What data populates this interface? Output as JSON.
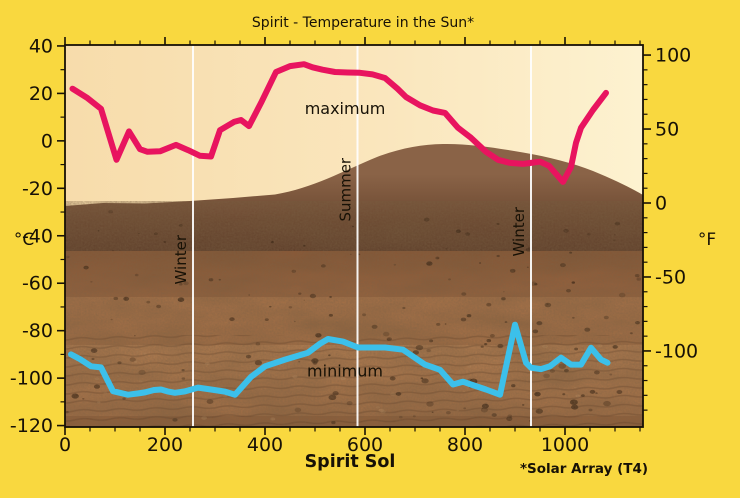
{
  "title": "Spirit - Temperature in the Sun*",
  "footnote": "*Solar Array (T4)",
  "colors": {
    "background": "#f9d83f",
    "sky_left": "#f7dcab",
    "sky_right": "#fdf2d0",
    "axis": "#171106",
    "max_line": "#e8145f",
    "min_line": "#3cc0ea",
    "season_line": "#ffffff"
  },
  "chart_data": {
    "type": "line",
    "title": "Spirit - Temperature in the Sun*",
    "xlabel": "Spirit Sol",
    "ylabel_left": "°C",
    "ylabel_right": "°F",
    "background_description": "Mars surface panorama photograph behind plot",
    "grid": "off",
    "legend": "inline-labels",
    "xlim": [
      0,
      1156
    ],
    "ylim_c": [
      -120.6,
      40.4
    ],
    "ylim_f": [
      -151.4,
      106.8
    ],
    "x_major_ticks": [
      0,
      200,
      400,
      600,
      800,
      1000
    ],
    "x_minor_step": 50,
    "x_minor_max": 1150,
    "yc_major_ticks": [
      40,
      20,
      0,
      -20,
      -40,
      -60,
      -80,
      -100,
      -120
    ],
    "yc_minor_step": 10,
    "yf_major_ticks": [
      100,
      50,
      0,
      -50,
      -100
    ],
    "yf_minor_step": 10,
    "yf_minor_min": -140,
    "season_markers": [
      {
        "label": "Winter",
        "sol": 256,
        "text_color": "#221708",
        "label_c": -50.1
      },
      {
        "label": "Summer",
        "sol": 585,
        "text_color": "#ffffff",
        "label_c": -20.6
      },
      {
        "label": "Winter",
        "sol": 932,
        "text_color": "#ffffff",
        "label_c": -38.3
      }
    ],
    "series": [
      {
        "name": "maximum",
        "color": "#e8145f",
        "label_pos": {
          "sol": 560,
          "c": 11.4
        },
        "points": [
          [
            15,
            22
          ],
          [
            45,
            18
          ],
          [
            72,
            13.5
          ],
          [
            103,
            -8
          ],
          [
            128,
            4
          ],
          [
            150,
            -3.5
          ],
          [
            165,
            -4.6
          ],
          [
            190,
            -4.4
          ],
          [
            222,
            -1.7
          ],
          [
            246,
            -3.9
          ],
          [
            270,
            -6.3
          ],
          [
            292,
            -6.6
          ],
          [
            310,
            4.5
          ],
          [
            338,
            8
          ],
          [
            352,
            8.8
          ],
          [
            368,
            6.2
          ],
          [
            392,
            16
          ],
          [
            422,
            29
          ],
          [
            450,
            31.5
          ],
          [
            478,
            32.3
          ],
          [
            495,
            31
          ],
          [
            515,
            30
          ],
          [
            540,
            29
          ],
          [
            565,
            28.8
          ],
          [
            590,
            28.7
          ],
          [
            615,
            28
          ],
          [
            640,
            26.5
          ],
          [
            665,
            22
          ],
          [
            682,
            18.5
          ],
          [
            710,
            15
          ],
          [
            736,
            12.8
          ],
          [
            760,
            11.8
          ],
          [
            786,
            5.5
          ],
          [
            812,
            1.3
          ],
          [
            842,
            -4.6
          ],
          [
            866,
            -8
          ],
          [
            890,
            -9.3
          ],
          [
            916,
            -9.7
          ],
          [
            932,
            -9.3
          ],
          [
            950,
            -8.8
          ],
          [
            968,
            -10.5
          ],
          [
            996,
            -17.3
          ],
          [
            1012,
            -11
          ],
          [
            1022,
            -0.8
          ],
          [
            1032,
            5.5
          ],
          [
            1056,
            13
          ],
          [
            1082,
            20.2
          ]
        ]
      },
      {
        "name": "minimum",
        "color": "#3cc0ea",
        "label_pos": {
          "sol": 560,
          "c": -99.4
        },
        "points": [
          [
            12,
            -90
          ],
          [
            30,
            -92
          ],
          [
            52,
            -95
          ],
          [
            72,
            -95.5
          ],
          [
            96,
            -105.5
          ],
          [
            126,
            -107
          ],
          [
            145,
            -106.5
          ],
          [
            160,
            -106
          ],
          [
            178,
            -105
          ],
          [
            192,
            -104.8
          ],
          [
            205,
            -105.6
          ],
          [
            220,
            -106.2
          ],
          [
            240,
            -105.6
          ],
          [
            266,
            -104
          ],
          [
            292,
            -104.8
          ],
          [
            320,
            -105.7
          ],
          [
            340,
            -107
          ],
          [
            372,
            -99.5
          ],
          [
            400,
            -95
          ],
          [
            440,
            -92.2
          ],
          [
            486,
            -89.3
          ],
          [
            510,
            -85.5
          ],
          [
            526,
            -83.5
          ],
          [
            556,
            -84.6
          ],
          [
            586,
            -87.1
          ],
          [
            640,
            -87.1
          ],
          [
            676,
            -88
          ],
          [
            720,
            -94.3
          ],
          [
            750,
            -96.5
          ],
          [
            776,
            -102.7
          ],
          [
            796,
            -101.5
          ],
          [
            812,
            -102.7
          ],
          [
            842,
            -104.8
          ],
          [
            870,
            -107
          ],
          [
            900,
            -77.5
          ],
          [
            922,
            -93.5
          ],
          [
            932,
            -95.6
          ],
          [
            952,
            -96.2
          ],
          [
            970,
            -95
          ],
          [
            992,
            -91.4
          ],
          [
            1012,
            -94.3
          ],
          [
            1032,
            -94.3
          ],
          [
            1052,
            -87.2
          ],
          [
            1072,
            -92.2
          ],
          [
            1085,
            -93.5
          ]
        ]
      }
    ]
  }
}
